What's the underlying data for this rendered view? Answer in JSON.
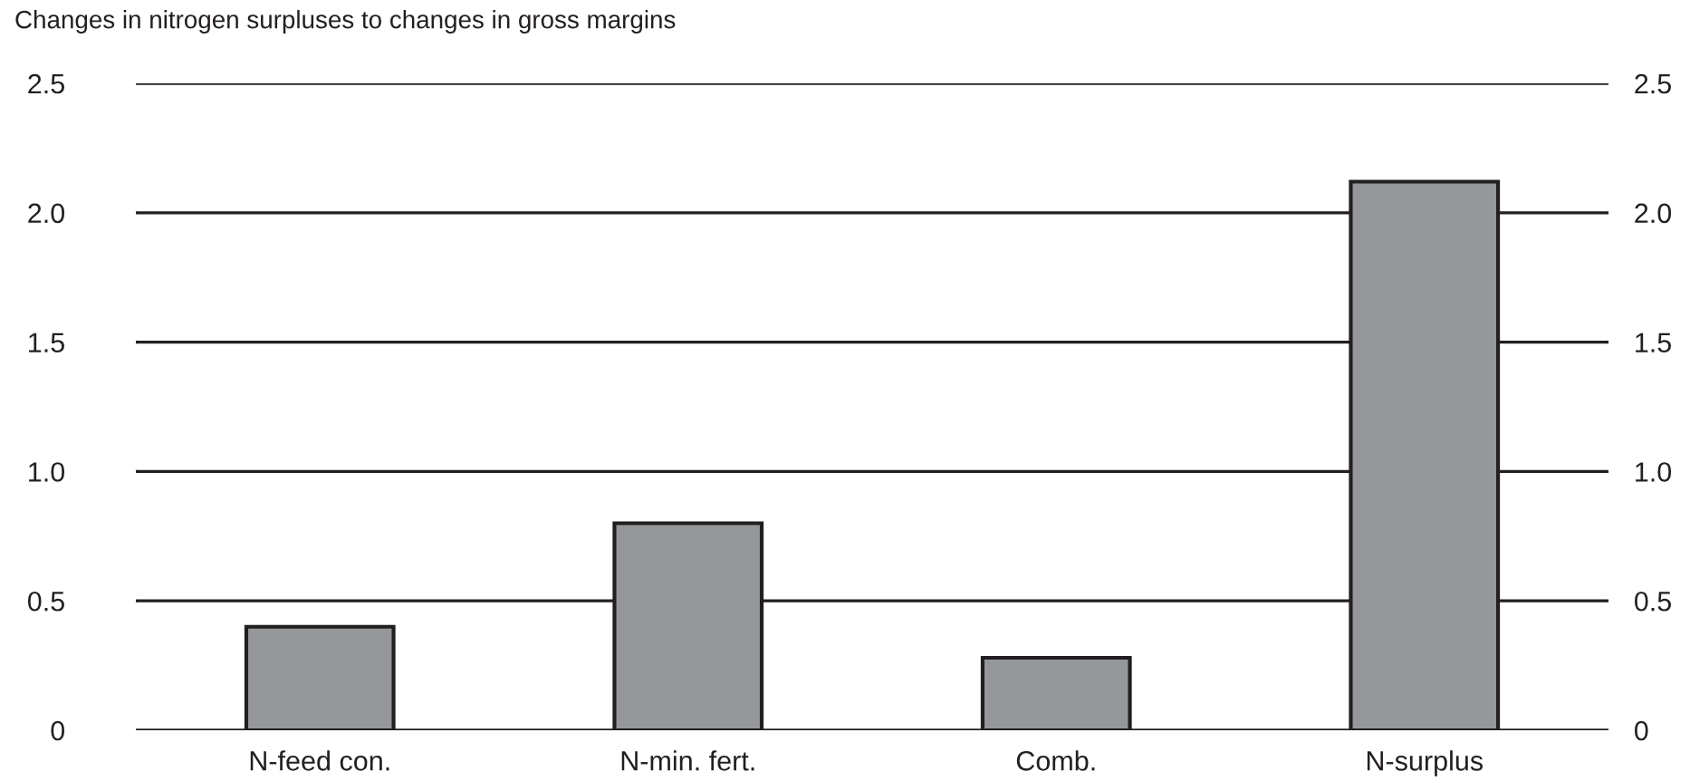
{
  "chart_data": {
    "type": "bar",
    "title": "Changes in nitrogen surpluses to changes in gross margins",
    "categories": [
      "N-feed con.",
      "N-min. fert.",
      "Comb.",
      "N-surplus"
    ],
    "series": [
      {
        "color": "#96979b",
        "values": [
          0.4,
          0.8,
          0.28,
          2.12
        ]
      }
    ],
    "ylim": [
      0,
      2.5
    ],
    "yticks": [
      {
        "value": 0,
        "label": "0"
      },
      {
        "value": 0.5,
        "label": "0.5"
      },
      {
        "value": 1.0,
        "label": "1.0"
      },
      {
        "value": 1.5,
        "label": "1.5"
      },
      {
        "value": 2.0,
        "label": "2.0"
      },
      {
        "value": 2.5,
        "label": "2.5"
      }
    ],
    "y2lim": [
      0,
      2.5
    ],
    "y2ticks": [
      {
        "value": 0,
        "label": "0"
      },
      {
        "value": 0.5,
        "label": "0.5"
      },
      {
        "value": 1.0,
        "label": "1.0"
      },
      {
        "value": 1.5,
        "label": "1.5"
      },
      {
        "value": 2.0,
        "label": "2.0"
      },
      {
        "value": 2.5,
        "label": "2.5"
      }
    ],
    "grid": "y",
    "legend": false
  }
}
